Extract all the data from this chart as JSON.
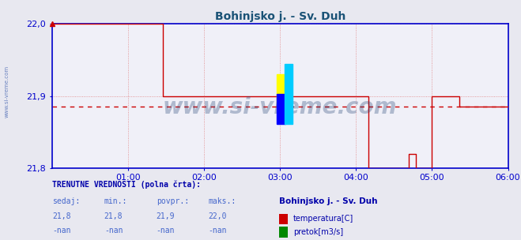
{
  "title": "Bohinjsko j. - Sv. Duh",
  "title_color": "#1a5276",
  "bg_color": "#e8e8f0",
  "plot_bg_color": "#f0f0f8",
  "grid_color_h": "#e08080",
  "grid_color_v": "#e08080",
  "axis_color": "#0000cc",
  "tick_color": "#0000cc",
  "xlim": [
    0,
    432
  ],
  "ylim": [
    21.8,
    22.0
  ],
  "yticks": [
    21.8,
    21.9,
    22.0
  ],
  "xtick_labels": [
    "01:00",
    "02:00",
    "03:00",
    "04:00",
    "05:00",
    "06:00"
  ],
  "xtick_positions": [
    72,
    144,
    216,
    288,
    360,
    432
  ],
  "avg_line_y": 21.885,
  "line_color": "#cc0000",
  "avg_line_color": "#cc0000",
  "watermark": "www.si-vreme.com",
  "watermark_color": "#1a3a6e",
  "sidebar_text": "www.si-vreme.com",
  "bottom_title": "TRENUTNE VREDNOSTI (polna črta):",
  "bottom_color": "#0000aa",
  "col_headers": [
    "sedaj:",
    "min.:",
    "povpr.:",
    "maks.:"
  ],
  "col_values_temp": [
    "21,8",
    "21,8",
    "21,9",
    "22,0"
  ],
  "col_values_flow": [
    "-nan",
    "-nan",
    "-nan",
    "-nan"
  ],
  "station_name": "Bohinjsko j. - Sv. Duh",
  "legend_temp": "temperatura[C]",
  "legend_flow": "pretok[m3/s]",
  "temp_color": "#cc0000",
  "flow_color": "#008800",
  "note_color": "#4466cc",
  "logo_yellow": "#ffff00",
  "logo_blue": "#0000ff",
  "logo_cyan": "#00ccff"
}
